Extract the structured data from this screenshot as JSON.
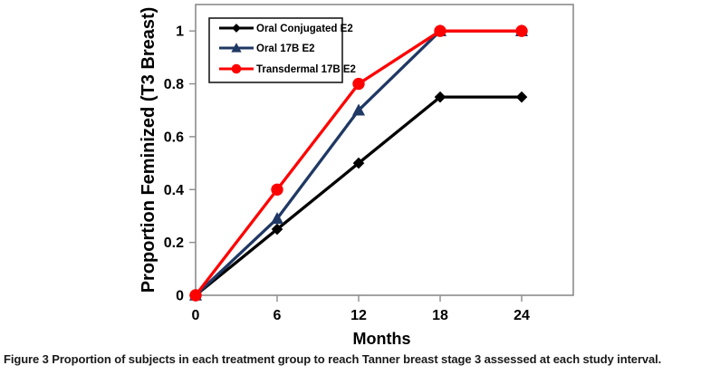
{
  "figure": {
    "caption_label": "Figure 3",
    "caption_text": "Proportion of subjects in each treatment group to reach Tanner breast stage 3 assessed at each study interval."
  },
  "chart_data": {
    "type": "line",
    "title": "",
    "xlabel": "Months",
    "ylabel": "Proportion Feminized (T3 Breast)",
    "x": [
      0,
      6,
      12,
      18,
      24
    ],
    "x_tick_labels": [
      "0",
      "6",
      "12",
      "18",
      "24"
    ],
    "y_ticks": [
      0,
      0.2,
      0.4,
      0.6,
      0.8,
      1
    ],
    "y_tick_labels": [
      "0",
      "0.2",
      "0.4",
      "0.6",
      "0.8",
      "1"
    ],
    "xlim": [
      0,
      27.8
    ],
    "ylim": [
      0,
      1.1
    ],
    "grid": false,
    "legend_position": "top-left-inside",
    "axis_color": "#8c8c8c",
    "legend_border_color": "#1a1a1a",
    "text_color": "#000000",
    "series": [
      {
        "name": "Oral Conjugated E2",
        "marker": "diamond",
        "color": "#000000",
        "values": [
          0,
          0.25,
          0.5,
          0.75,
          0.75
        ]
      },
      {
        "name": "Oral 17B E2",
        "marker": "triangle",
        "color": "#1F3864",
        "values": [
          0,
          0.29,
          0.7,
          1,
          1
        ]
      },
      {
        "name": "Transdermal 17B E2",
        "marker": "circle",
        "color": "#FF0000",
        "values": [
          0,
          0.4,
          0.8,
          1,
          1
        ]
      }
    ]
  }
}
